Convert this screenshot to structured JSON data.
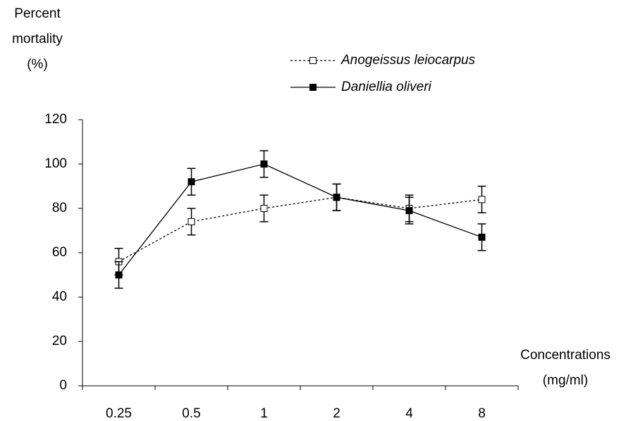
{
  "chart_data": {
    "type": "line",
    "y_label": [
      "Percent",
      "mortality",
      "(%)"
    ],
    "x_label": [
      "Concentrations",
      "(mg/ml)"
    ],
    "categories": [
      "0.25",
      "0.5",
      "1",
      "2",
      "4",
      "8"
    ],
    "series": [
      {
        "name": "Anogeissus leiocarpus",
        "color": "#000000",
        "dash": "dotted",
        "marker": "open-square",
        "values": [
          56,
          74,
          80,
          85,
          80,
          84
        ],
        "errors": [
          6,
          6,
          6,
          6,
          6,
          6
        ]
      },
      {
        "name": "Daniellia oliveri",
        "color": "#000000",
        "dash": "solid",
        "marker": "filled-square",
        "values": [
          50,
          92,
          100,
          85,
          79,
          67
        ],
        "errors": [
          6,
          6,
          6,
          6,
          6,
          6
        ]
      }
    ],
    "ylim": [
      0,
      120
    ],
    "yticks": [
      0,
      20,
      40,
      60,
      80,
      100,
      120
    ],
    "grid": false
  }
}
